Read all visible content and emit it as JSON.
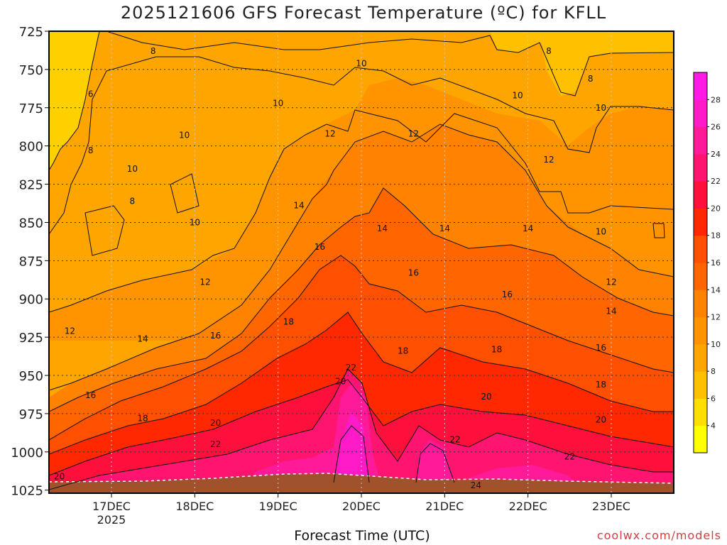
{
  "chart_data": {
    "type": "heatmap",
    "title": "2025121606 GFS Forecast Temperature (ºC) for KFLL",
    "xlabel": "Forecast Time (UTC)",
    "ylabel": "",
    "credit": "coolwx.com/models",
    "y_axis": {
      "ticks": [
        725,
        750,
        775,
        800,
        825,
        850,
        875,
        900,
        925,
        950,
        975,
        1000,
        1025
      ],
      "range": [
        725,
        1027
      ],
      "inverted": true
    },
    "x_axis": {
      "ticks": [
        {
          "value": "2025-12-17T00",
          "label": "17DEC",
          "sublabel": "2025"
        },
        {
          "value": "2025-12-18T00",
          "label": "18DEC"
        },
        {
          "value": "2025-12-19T00",
          "label": "19DEC"
        },
        {
          "value": "2025-12-20T00",
          "label": "20DEC"
        },
        {
          "value": "2025-12-21T00",
          "label": "21DEC"
        },
        {
          "value": "2025-12-22T00",
          "label": "22DEC"
        },
        {
          "value": "2025-12-23T00",
          "label": "23DEC"
        }
      ],
      "range": [
        "2025-12-16T06",
        "2025-12-23T18"
      ]
    },
    "grid": true,
    "colorbar": {
      "placement": "right",
      "ticks": [
        4,
        6,
        8,
        10,
        12,
        14,
        16,
        18,
        20,
        22,
        24,
        26,
        28
      ],
      "colors": [
        "#ffff00",
        "#ffdf00",
        "#ffc000",
        "#ffa500",
        "#ff9400",
        "#ff8200",
        "#ff6600",
        "#ff4f00",
        "#ff2800",
        "#ff0f3c",
        "#ff1470",
        "#ff1a99",
        "#ff1ac8",
        "#ff1ae6"
      ]
    },
    "contour_levels": [
      8,
      10,
      12,
      14,
      16,
      18,
      20,
      22,
      24
    ],
    "contour_labels": [
      {
        "t": "2025-12-17T12",
        "p": 738,
        "v": "8"
      },
      {
        "t": "2025-12-22T06",
        "p": 738,
        "v": "8"
      },
      {
        "t": "2025-12-16T18",
        "p": 766,
        "v": "6"
      },
      {
        "t": "2025-12-16T18",
        "p": 803,
        "v": "8"
      },
      {
        "t": "2025-12-22T18",
        "p": 756,
        "v": "8"
      },
      {
        "t": "2025-12-20T00",
        "p": 746,
        "v": "10"
      },
      {
        "t": "2025-12-19T00",
        "p": 772,
        "v": "10"
      },
      {
        "t": "2025-12-21T21",
        "p": 767,
        "v": "10"
      },
      {
        "t": "2025-12-22T21",
        "p": 775,
        "v": "10"
      },
      {
        "t": "2025-12-17T21",
        "p": 793,
        "v": "10"
      },
      {
        "t": "2025-12-17T06",
        "p": 815,
        "v": "10"
      },
      {
        "t": "2025-12-17T06",
        "p": 836,
        "v": "8"
      },
      {
        "t": "2025-12-18T00",
        "p": 850,
        "v": "10"
      },
      {
        "t": "2025-12-22T21",
        "p": 856,
        "v": "10"
      },
      {
        "t": "2025-12-19T15",
        "p": 792,
        "v": "12"
      },
      {
        "t": "2025-12-20T15",
        "p": 792,
        "v": "12"
      },
      {
        "t": "2025-12-22T06",
        "p": 809,
        "v": "12"
      },
      {
        "t": "2025-12-18T03",
        "p": 889,
        "v": "12"
      },
      {
        "t": "2025-12-23T00",
        "p": 889,
        "v": "12"
      },
      {
        "t": "2025-12-16T12",
        "p": 921,
        "v": "12"
      },
      {
        "t": "2025-12-19T06",
        "p": 839,
        "v": "14"
      },
      {
        "t": "2025-12-20T06",
        "p": 854,
        "v": "14"
      },
      {
        "t": "2025-12-21T00",
        "p": 854,
        "v": "14"
      },
      {
        "t": "2025-12-22T00",
        "p": 854,
        "v": "14"
      },
      {
        "t": "2025-12-23T00",
        "p": 908,
        "v": "14"
      },
      {
        "t": "2025-12-17T09",
        "p": 926,
        "v": "14"
      },
      {
        "t": "2025-12-19T12",
        "p": 866,
        "v": "16"
      },
      {
        "t": "2025-12-20T15",
        "p": 883,
        "v": "16"
      },
      {
        "t": "2025-12-21T18",
        "p": 897,
        "v": "16"
      },
      {
        "t": "2025-12-18T06",
        "p": 924,
        "v": "16"
      },
      {
        "t": "2025-12-22T21",
        "p": 932,
        "v": "16"
      },
      {
        "t": "2025-12-16T18",
        "p": 963,
        "v": "16"
      },
      {
        "t": "2025-12-19T03",
        "p": 915,
        "v": "18"
      },
      {
        "t": "2025-12-20T12",
        "p": 934,
        "v": "18"
      },
      {
        "t": "2025-12-21T15",
        "p": 933,
        "v": "18"
      },
      {
        "t": "2025-12-22T21",
        "p": 956,
        "v": "18"
      },
      {
        "t": "2025-12-17T09",
        "p": 978,
        "v": "18"
      },
      {
        "t": "2025-12-19T18",
        "p": 954,
        "v": "20"
      },
      {
        "t": "2025-12-21T12",
        "p": 964,
        "v": "20"
      },
      {
        "t": "2025-12-22T21",
        "p": 979,
        "v": "20"
      },
      {
        "t": "2025-12-18T06",
        "p": 981,
        "v": "20"
      },
      {
        "t": "2025-12-16T09",
        "p": 1016,
        "v": "20"
      },
      {
        "t": "2025-12-19T21",
        "p": 945,
        "v": "22"
      },
      {
        "t": "2025-12-18T06",
        "p": 995,
        "v": "22"
      },
      {
        "t": "2025-12-21T03",
        "p": 992,
        "v": "22"
      },
      {
        "t": "2025-12-22T12",
        "p": 1003,
        "v": "22"
      },
      {
        "t": "2025-12-21T09",
        "p": 1022,
        "v": "24"
      }
    ]
  }
}
